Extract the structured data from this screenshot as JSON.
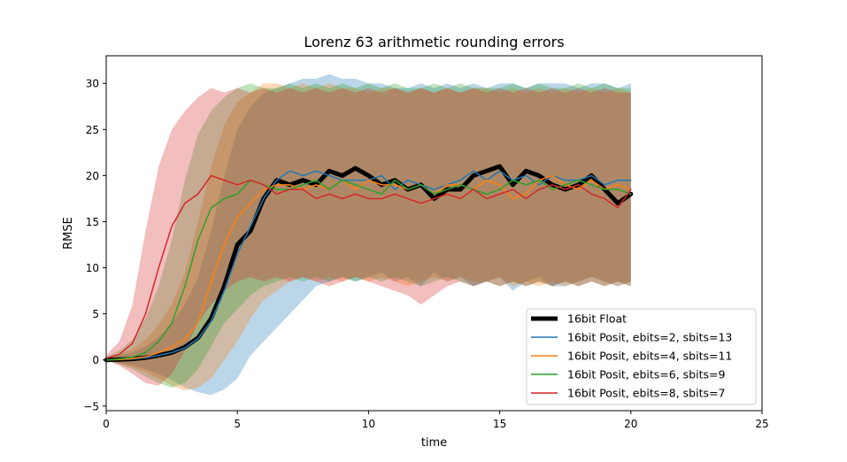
{
  "chart_data": {
    "type": "line",
    "title": "Lorenz 63 arithmetic rounding errors",
    "xlabel": "time",
    "ylabel": "RMSE",
    "xlim": [
      0,
      25
    ],
    "ylim": [
      -5.5,
      33
    ],
    "xticks": [
      0,
      5,
      10,
      15,
      20,
      25
    ],
    "yticks": [
      -5,
      0,
      5,
      10,
      15,
      20,
      25,
      30
    ],
    "grid": false,
    "legend_position": "lower-right",
    "x": [
      0,
      0.5,
      1,
      1.5,
      2,
      2.5,
      3,
      3.5,
      4,
      4.5,
      5,
      5.5,
      6,
      6.5,
      7,
      7.5,
      8,
      8.5,
      9,
      9.5,
      10,
      10.5,
      11,
      11.5,
      12,
      12.5,
      13,
      13.5,
      14,
      14.5,
      15,
      15.5,
      16,
      16.5,
      17,
      17.5,
      18,
      18.5,
      19,
      19.5,
      20
    ],
    "series": [
      {
        "name": "16bit Float",
        "color": "#000000",
        "linewidth": 5,
        "values": [
          0,
          0.05,
          0.1,
          0.25,
          0.5,
          0.8,
          1.4,
          2.4,
          4.5,
          8,
          12.5,
          14,
          17.5,
          19.5,
          19,
          19.5,
          19,
          20.5,
          20,
          20.8,
          20,
          19,
          19.5,
          18.5,
          19,
          17.5,
          18.5,
          18.5,
          20,
          20.5,
          21,
          19,
          20.5,
          20,
          19,
          18.5,
          19,
          20,
          18.5,
          17,
          18
        ]
      },
      {
        "name": "16bit Posit, ebits=2, sbits=13",
        "color": "#1f77b4",
        "linewidth": 1.5,
        "band": {
          "lower": [
            0,
            -0.3,
            -0.6,
            -1,
            -1.5,
            -2.2,
            -3,
            -3.5,
            -3.8,
            -3.2,
            -2,
            0.5,
            2,
            3.5,
            5,
            6.5,
            8,
            8.5,
            9,
            8.5,
            9,
            9.5,
            8.5,
            9,
            8,
            9.5,
            8.5,
            9,
            8,
            8.5,
            9,
            7.5,
            8.5,
            9,
            8,
            8,
            8.5,
            9,
            8.5,
            8,
            8.5
          ],
          "upper": [
            0.2,
            0.5,
            0.8,
            1.5,
            2.5,
            4,
            6,
            9,
            14,
            20,
            25,
            27.5,
            29,
            29.5,
            30,
            30.5,
            30.5,
            31,
            30.5,
            30.5,
            30,
            30,
            29.5,
            29.5,
            30,
            29.5,
            30,
            29.5,
            30,
            29.5,
            30,
            30,
            29.5,
            30,
            30,
            30,
            29.5,
            30,
            30,
            29.5,
            30
          ]
        },
        "values": [
          0,
          0.05,
          0.1,
          0.25,
          0.5,
          0.8,
          1.3,
          2.3,
          4.2,
          7.5,
          11.5,
          14.5,
          17.5,
          19.5,
          20.5,
          20,
          20.5,
          20,
          19.5,
          19.5,
          19.5,
          20,
          18.5,
          19.5,
          19,
          18.5,
          19,
          19.5,
          20.5,
          19.5,
          20.5,
          19.5,
          20,
          19,
          20,
          19.5,
          19.5,
          20,
          19,
          19.5,
          19.5
        ]
      },
      {
        "name": "16bit Posit, ebits=4, sbits=11",
        "color": "#ff7f0e",
        "linewidth": 1.5,
        "band": {
          "lower": [
            0,
            -0.4,
            -0.8,
            -1.3,
            -2,
            -2.8,
            -3.3,
            -3,
            -2,
            0,
            2,
            4.5,
            6.5,
            7.5,
            8.5,
            9,
            8.5,
            9,
            8.5,
            9,
            8.5,
            9,
            8.5,
            8,
            8.5,
            9,
            8.5,
            9,
            8.5,
            8.5,
            9,
            8,
            8.5,
            8,
            8.5,
            8,
            8.5,
            9,
            8.5,
            8,
            8.5
          ],
          "upper": [
            0.2,
            0.6,
            1.2,
            2.2,
            3.8,
            6,
            9.5,
            15,
            21,
            25.5,
            28,
            29,
            30,
            30,
            29.5,
            30,
            29.5,
            30,
            29.5,
            29.5,
            29,
            29.5,
            29.5,
            29,
            29.5,
            29,
            29.5,
            29,
            29.5,
            29.5,
            29,
            29.5,
            29,
            29.5,
            29,
            29.5,
            29,
            29.5,
            29,
            29.5,
            29
          ]
        },
        "values": [
          0,
          0.05,
          0.15,
          0.35,
          0.8,
          1.4,
          2.3,
          4,
          8.5,
          12.5,
          15.5,
          17,
          18.5,
          19,
          19,
          18.5,
          19,
          18.5,
          19.5,
          18.5,
          19.5,
          19,
          19,
          18.5,
          19,
          18,
          19,
          19,
          18.5,
          19.5,
          19,
          17.5,
          18,
          19.5,
          20,
          19,
          18.5,
          19.5,
          18.5,
          19,
          18.5
        ]
      },
      {
        "name": "16bit Posit, ebits=6, sbits=9",
        "color": "#2ca02c",
        "linewidth": 1.5,
        "band": {
          "lower": [
            0,
            -0.5,
            -1,
            -1.8,
            -2.5,
            -3,
            -2.5,
            -1,
            1.5,
            4,
            5.5,
            7,
            8,
            8.5,
            9,
            8.5,
            9,
            8.5,
            9,
            8.5,
            9,
            8.5,
            9,
            8.5,
            8,
            8.5,
            9,
            8.5,
            8,
            8.5,
            8,
            8.5,
            8,
            8.5,
            8,
            8.5,
            8,
            8.5,
            8,
            8.5,
            8
          ],
          "upper": [
            0.3,
            1,
            2.2,
            4.5,
            8,
            13,
            19.5,
            24.5,
            27,
            28.5,
            29.5,
            30,
            29.5,
            29.5,
            30,
            29.5,
            30,
            29.5,
            30,
            29.5,
            30,
            29.5,
            30,
            29.5,
            29.5,
            30,
            29.5,
            30,
            29.5,
            29.5,
            29.5,
            30,
            29.5,
            30,
            29.5,
            29.5,
            30,
            29.5,
            30,
            29.5,
            29.5
          ]
        },
        "values": [
          0,
          0.1,
          0.3,
          0.8,
          2,
          4,
          8,
          13,
          16.5,
          17.5,
          18,
          19.5,
          19,
          18.5,
          18.5,
          19,
          19.5,
          18.5,
          19.5,
          19,
          18.5,
          18,
          19.5,
          18.5,
          19,
          18,
          18.5,
          19,
          18.5,
          18,
          18.5,
          19.5,
          19,
          19.5,
          18.5,
          19,
          19.5,
          19,
          18.5,
          18.5,
          18
        ]
      },
      {
        "name": "16bit Posit, ebits=8, sbits=7",
        "color": "#d62728",
        "linewidth": 1.5,
        "band": {
          "lower": [
            0,
            -0.6,
            -1.5,
            -2.5,
            -2.8,
            -1.5,
            1,
            4,
            6,
            7.5,
            8.5,
            9,
            8.5,
            9,
            8.5,
            9,
            8.5,
            8,
            8.5,
            9,
            8.5,
            8,
            7.5,
            7,
            6,
            7,
            8,
            8.5,
            8,
            8.5,
            8,
            8.5,
            8,
            8.5,
            8,
            8.5,
            8,
            8.5,
            8,
            8.5,
            8
          ],
          "upper": [
            0.5,
            2,
            6,
            14,
            21,
            25,
            27,
            28.5,
            29.5,
            29,
            29.5,
            29,
            29.5,
            29,
            29.5,
            29,
            29.5,
            29,
            29.5,
            29,
            29.5,
            29,
            29.5,
            29,
            29.5,
            29,
            29.5,
            29,
            29.5,
            29,
            29.5,
            29,
            29.5,
            29,
            29.5,
            29,
            29.5,
            29,
            29.5,
            29,
            29
          ]
        },
        "values": [
          0.2,
          0.6,
          1.8,
          5,
          10,
          14.5,
          17,
          18,
          20,
          19.5,
          19,
          19.5,
          19,
          18,
          18.5,
          18.5,
          17.5,
          18,
          17.5,
          18,
          17.5,
          17.5,
          18,
          17.5,
          17,
          17.5,
          18,
          17.5,
          18.5,
          17.5,
          18,
          18.5,
          17.5,
          18.5,
          19,
          18.5,
          19,
          18,
          17.5,
          16.5,
          18.5
        ]
      }
    ]
  }
}
